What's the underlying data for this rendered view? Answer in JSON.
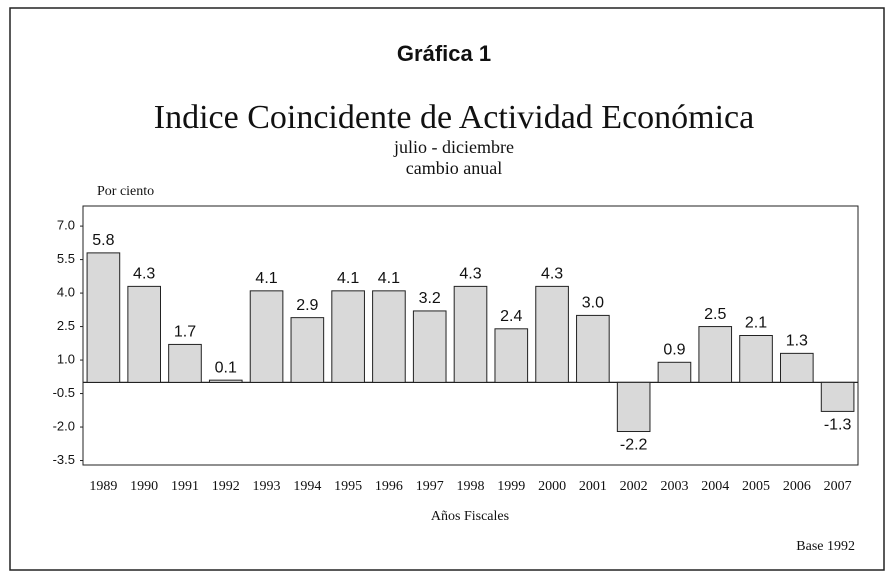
{
  "chart_data": {
    "type": "bar",
    "label": "Gráfica 1",
    "title": "Indice Coincidente de Actividad Económica",
    "subtitle": [
      "julio - diciembre",
      "cambio anual"
    ],
    "y_label": "Por ciento",
    "x_label": "Años Fiscales",
    "note": "Base 1992",
    "categories": [
      "1989",
      "1990",
      "1991",
      "1992",
      "1993",
      "1994",
      "1995",
      "1996",
      "1997",
      "1998",
      "1999",
      "2000",
      "2001",
      "2002",
      "2003",
      "2004",
      "2005",
      "2006",
      "2007"
    ],
    "values": [
      5.8,
      4.3,
      1.7,
      0.1,
      4.1,
      2.9,
      4.1,
      4.1,
      3.2,
      4.3,
      2.4,
      4.3,
      3.0,
      -2.2,
      0.9,
      2.5,
      2.1,
      1.3,
      -1.3
    ],
    "value_labels": [
      "5.8",
      "4.3",
      "1.7",
      "0.1",
      "4.1",
      "2.9",
      "4.1",
      "4.1",
      "3.2",
      "4.3",
      "2.4",
      "4.3",
      "3.0",
      "-2.2",
      "0.9",
      "2.5",
      "2.1",
      "1.3",
      "-1.3"
    ],
    "color": "#d9d9d9",
    "ylim": [
      -3.7,
      7.9
    ],
    "yticks": [
      {
        "value": 7,
        "label": "7.0"
      },
      {
        "value": 5.5,
        "label": "5.5"
      },
      {
        "value": 4,
        "label": "4.0"
      },
      {
        "value": 2.5,
        "label": "2.5"
      },
      {
        "value": 1,
        "label": "1.0"
      },
      {
        "value": -0.5,
        "label": "-0.5"
      },
      {
        "value": -2,
        "label": "-2.0"
      },
      {
        "value": -3.5,
        "label": "-3.5"
      }
    ],
    "grid": false
  }
}
